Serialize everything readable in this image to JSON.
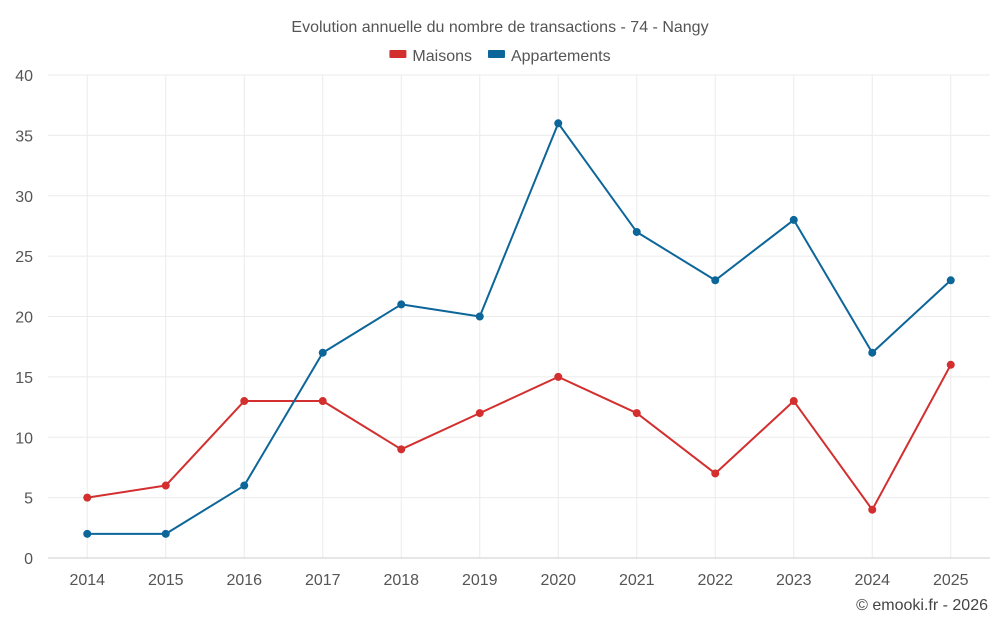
{
  "chart_data": {
    "type": "line",
    "title": "Evolution annuelle du nombre de transactions - 74 - Nangy",
    "categories": [
      "2014",
      "2015",
      "2016",
      "2017",
      "2018",
      "2019",
      "2020",
      "2021",
      "2022",
      "2023",
      "2024",
      "2025"
    ],
    "series": [
      {
        "name": "Maisons",
        "color": "#d32f2f",
        "values": [
          5,
          6,
          13,
          13,
          9,
          12,
          15,
          12,
          7,
          13,
          4,
          16
        ]
      },
      {
        "name": "Appartements",
        "color": "#0d6699",
        "values": [
          2,
          2,
          6,
          17,
          21,
          20,
          36,
          27,
          23,
          28,
          17,
          23
        ]
      }
    ],
    "ylim": [
      0,
      40
    ],
    "yticks": [
      0,
      5,
      10,
      15,
      20,
      25,
      30,
      35,
      40
    ],
    "xlabel": "",
    "ylabel": "",
    "grid": true,
    "legend": "top-center"
  },
  "credit": "© emooki.fr - 2026"
}
